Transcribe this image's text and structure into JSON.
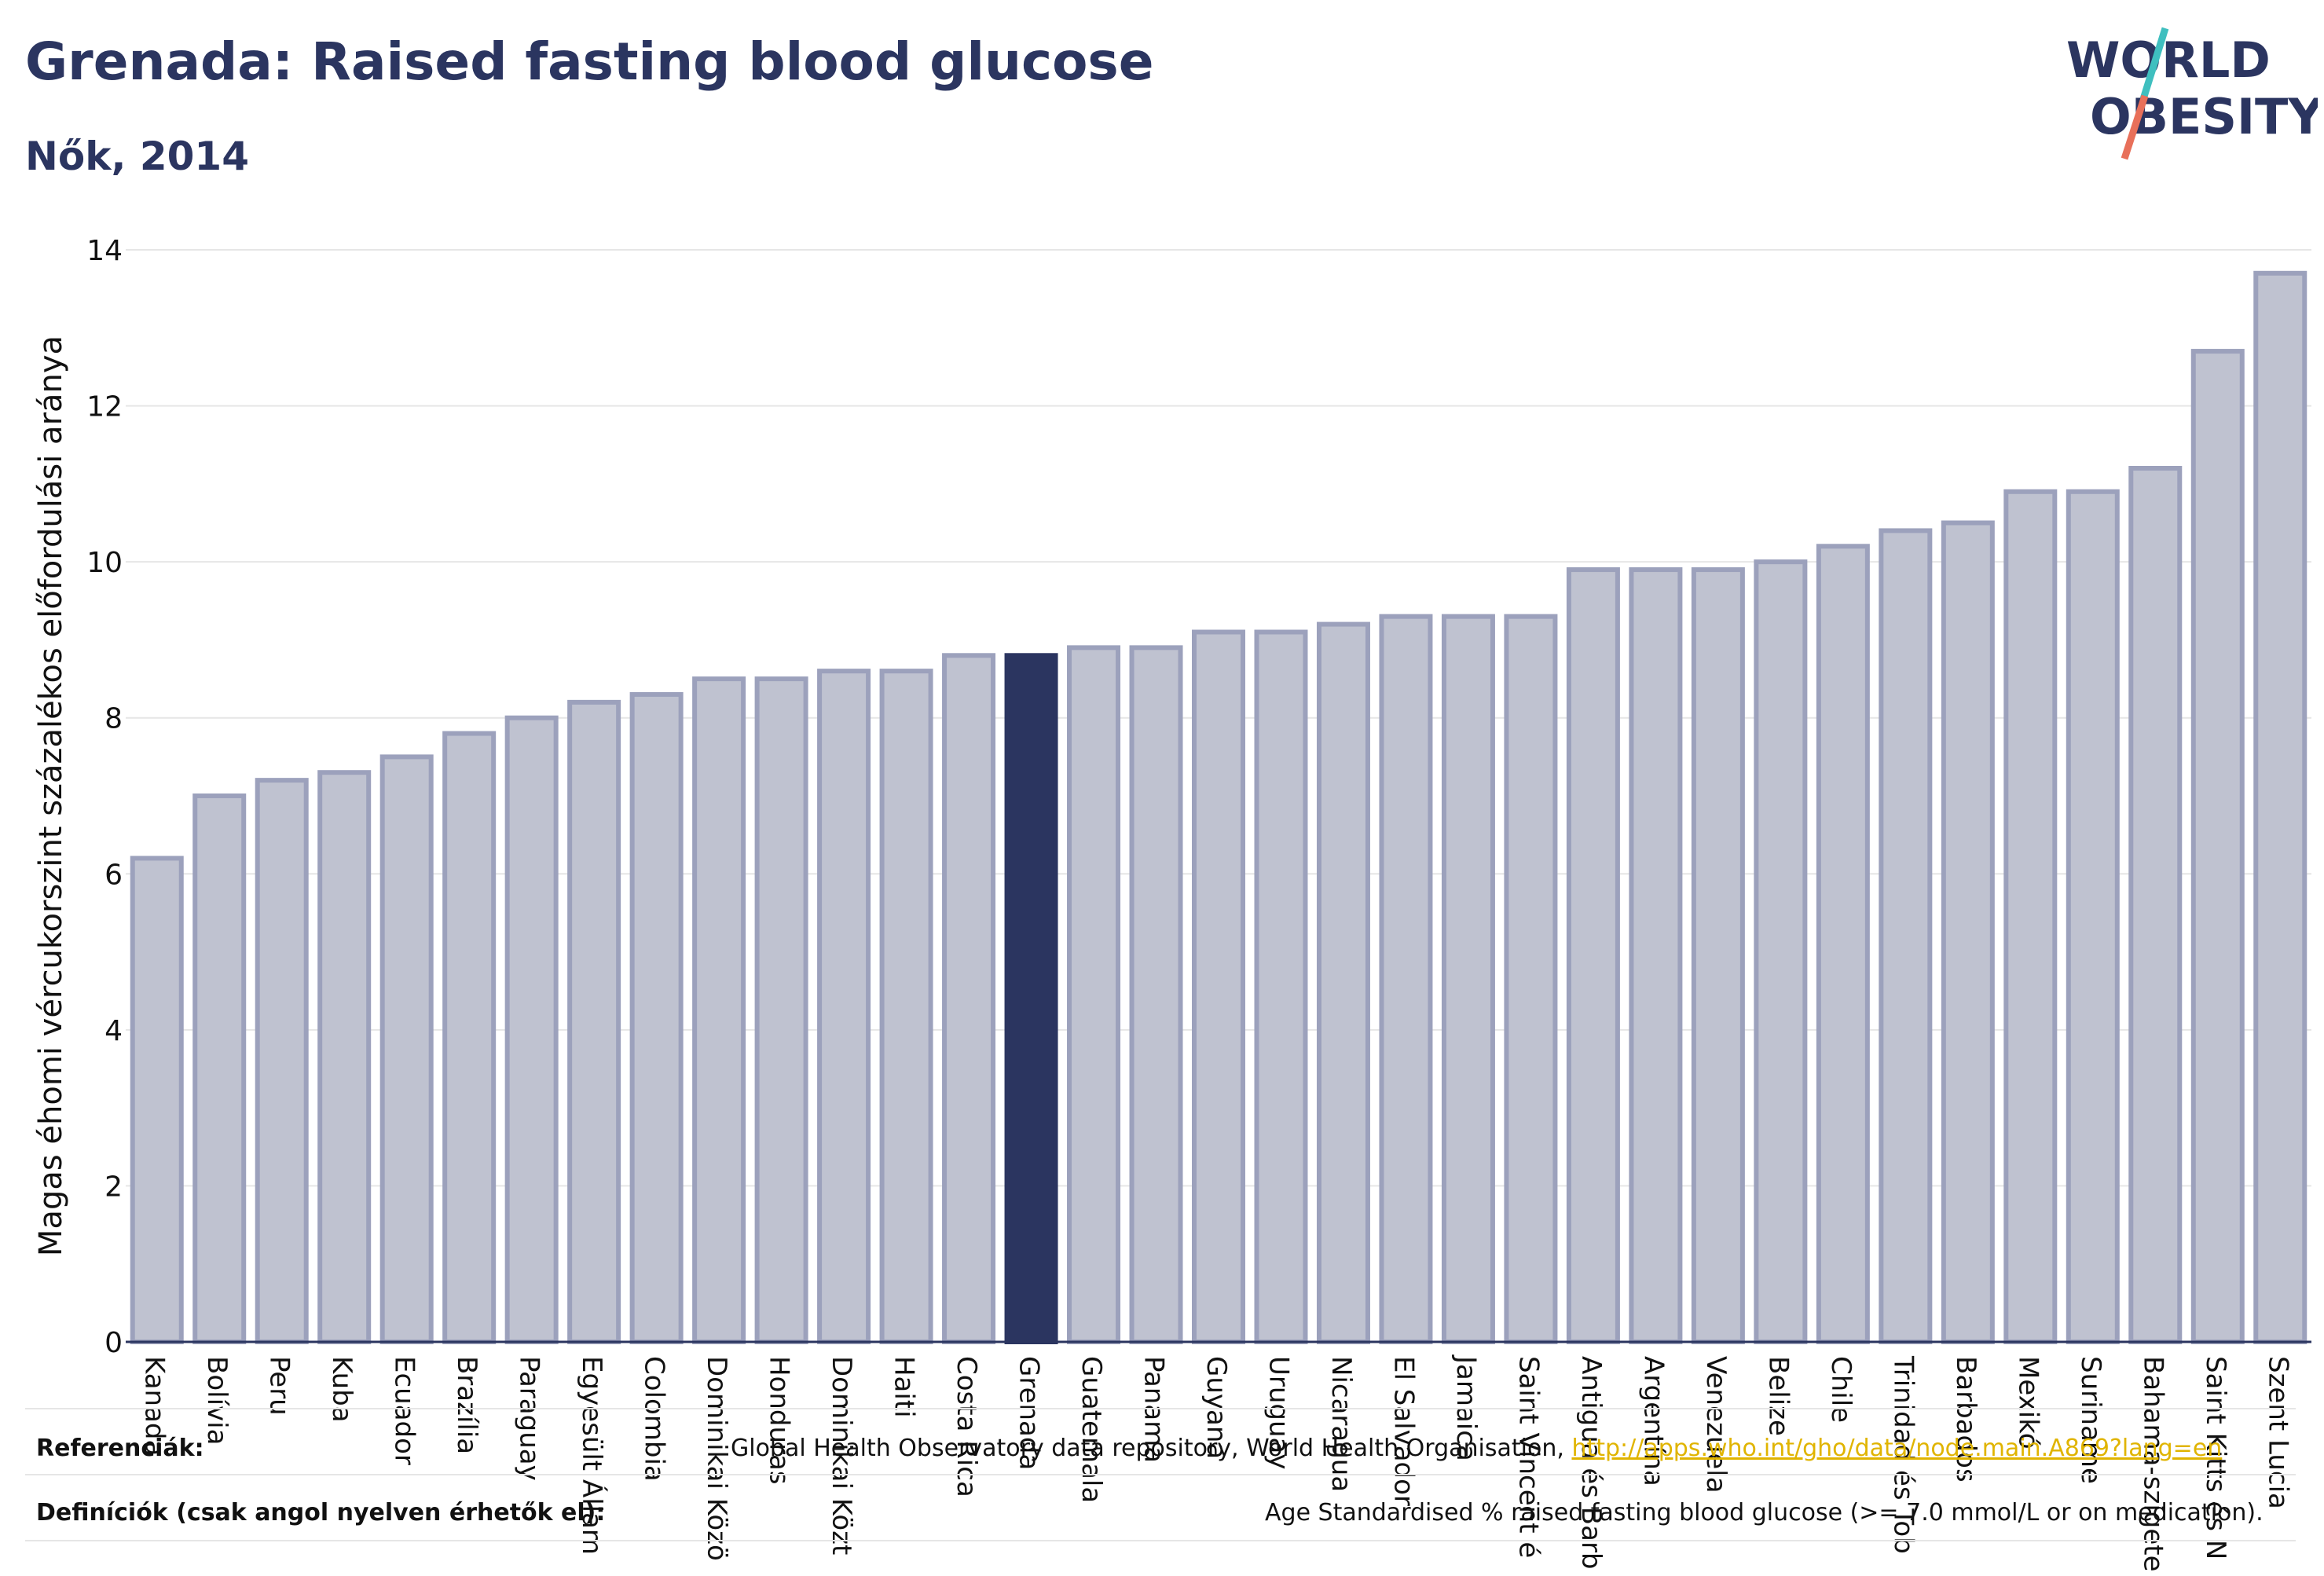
{
  "header": {
    "title": "Grenada: Raised fasting blood glucose",
    "subtitle": "Nők, 2014"
  },
  "logo": {
    "line1": "WORLD",
    "line2": "OBESITY"
  },
  "colors": {
    "bar_fill": "#bfc2d0",
    "bar_stroke": "#9ca1bc",
    "highlight": "#2b3560",
    "grid": "#e6e6e6",
    "text": "#2b3560",
    "link": "#e0b400",
    "logo_teal": "#3fbfbf",
    "logo_coral": "#e8705a"
  },
  "chart_data": {
    "type": "bar",
    "ylabel": "Magas éhomi vércukorszint százalékos előfordulási aránya",
    "ylim": [
      0,
      14
    ],
    "yticks": [
      0,
      2,
      4,
      6,
      8,
      10,
      12,
      14
    ],
    "grid": true,
    "highlight": "Grenada",
    "categories": [
      "Kanada",
      "Bolívia",
      "Peru",
      "Kuba",
      "Ecuador",
      "Brazília",
      "Paraguay",
      "Egyesült Állam",
      "Colombia",
      "Dominikai Közö",
      "Honduras",
      "Dominikai Közt",
      "Haiti",
      "Costa Rica",
      "Grenada",
      "Guatemala",
      "Panama",
      "Guyana",
      "Uruguay",
      "Nicaragua",
      "El Salvador",
      "Jamaica",
      "Saint Vincent é",
      "Antigua és Barb",
      "Argentína",
      "Venezuela",
      "Belize",
      "Chile",
      "Trinidad és Tob",
      "Barbados",
      "Mexikó",
      "Suriname",
      "Bahama-szigete",
      "Saint Kitts és N",
      "Szent Lucia"
    ],
    "values": [
      6.2,
      7.0,
      7.2,
      7.3,
      7.5,
      7.8,
      8.0,
      8.2,
      8.3,
      8.5,
      8.5,
      8.6,
      8.6,
      8.8,
      8.8,
      8.9,
      8.9,
      9.1,
      9.1,
      9.2,
      9.3,
      9.3,
      9.3,
      9.9,
      9.9,
      9.9,
      10.0,
      10.2,
      10.4,
      10.5,
      10.9,
      10.9,
      11.2,
      12.7,
      13.7
    ]
  },
  "footer": {
    "ref_label": "Referenciák:",
    "ref_text": "Global Health Observatory data repository, World Health Organisation,",
    "ref_link": "http://apps.who.int/gho/data/node.main.A869?lang=en",
    "def_label": "Definíciók (csak angol nyelven érhetők el):",
    "def_text": "Age Standardised % raised fasting blood glucose (>= 7.0 mmol/L or on medication)."
  }
}
